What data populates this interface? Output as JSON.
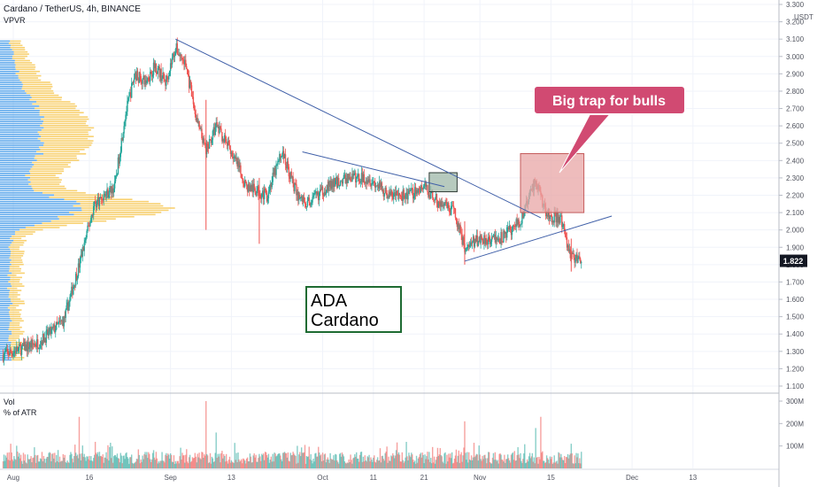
{
  "header": {
    "title": "Cardano / TetherUS, 4h, BINANCE",
    "indicator": "VPVR"
  },
  "volume_pane": {
    "title": "Vol",
    "subtitle": "% of ATR"
  },
  "price_axis": {
    "unit": "USDT",
    "current_price": "1.822"
  },
  "annotations": {
    "callout": "Big trap for bulls",
    "label_line1": "ADA",
    "label_line2": "Cardano"
  },
  "colors": {
    "up": "#26a69a",
    "down": "#ef5350",
    "trendline": "#3f5fa8",
    "vpvr_up": "#2f8fe6",
    "vpvr_down": "#f5c242",
    "trap_box": "#e8a6a6",
    "green_box": "#9fb8a8",
    "callout_fill": "#d14a72",
    "label_border": "#1e6b32"
  },
  "chart_data": [
    {
      "type": "candlestick",
      "title": "Cardano / TetherUS, 4h, BINANCE",
      "ylabel": "USDT",
      "ylim": [
        1.1,
        3.3
      ],
      "yticks": [
        "3.300",
        "3.200",
        "3.100",
        "3.000",
        "2.900",
        "2.800",
        "2.700",
        "2.600",
        "2.500",
        "2.400",
        "2.300",
        "2.200",
        "2.100",
        "2.000",
        "1.900",
        "1.800",
        "1.700",
        "1.600",
        "1.500",
        "1.400",
        "1.300",
        "1.200",
        "1.100"
      ],
      "xticks": [
        "Aug",
        "16",
        "Sep",
        "13",
        "Oct",
        "11",
        "21",
        "Nov",
        "15",
        "Dec",
        "13"
      ],
      "xtick_days": [
        0,
        15,
        31,
        43,
        61,
        71,
        81,
        92,
        106,
        122,
        134
      ],
      "x_unit": "days since Aug 1",
      "last_price": 1.822,
      "price_path": [
        [
          -2,
          1.28
        ],
        [
          5,
          1.35
        ],
        [
          10,
          1.48
        ],
        [
          13,
          1.8
        ],
        [
          16,
          2.15
        ],
        [
          18,
          2.2
        ],
        [
          20,
          2.25
        ],
        [
          22,
          2.65
        ],
        [
          24,
          2.9
        ],
        [
          26,
          2.85
        ],
        [
          28,
          2.95
        ],
        [
          30,
          2.85
        ],
        [
          32,
          3.05
        ],
        [
          34,
          2.95
        ],
        [
          36,
          2.65
        ],
        [
          38,
          2.45
        ],
        [
          40,
          2.6
        ],
        [
          43,
          2.45
        ],
        [
          46,
          2.25
        ],
        [
          50,
          2.2
        ],
        [
          53,
          2.45
        ],
        [
          56,
          2.2
        ],
        [
          58,
          2.15
        ],
        [
          62,
          2.25
        ],
        [
          66,
          2.3
        ],
        [
          70,
          2.3
        ],
        [
          74,
          2.2
        ],
        [
          78,
          2.2
        ],
        [
          81,
          2.25
        ],
        [
          84,
          2.15
        ],
        [
          87,
          2.1
        ],
        [
          89,
          1.9
        ],
        [
          92,
          1.95
        ],
        [
          96,
          1.95
        ],
        [
          100,
          2.05
        ],
        [
          103,
          2.3
        ],
        [
          105,
          2.1
        ],
        [
          108,
          2.05
        ],
        [
          110,
          1.85
        ],
        [
          112,
          1.82
        ]
      ],
      "trendlines": [
        {
          "from": [
            32,
            3.1
          ],
          "to": [
            104,
            2.07
          ]
        },
        {
          "from": [
            57,
            2.45
          ],
          "to": [
            85,
            2.25
          ]
        },
        {
          "from": [
            89,
            1.82
          ],
          "to": [
            118,
            2.08
          ]
        }
      ],
      "boxes": [
        {
          "x": [
            82,
            87.5
          ],
          "y": [
            2.22,
            2.33
          ]
        },
        {
          "x": [
            100,
            112.5
          ],
          "y": [
            2.1,
            2.44
          ]
        }
      ]
    },
    {
      "type": "bar",
      "title": "Vol",
      "ylim": [
        0,
        300000000
      ],
      "yticks": [
        "300M",
        "200M",
        "100M"
      ],
      "spikes": [
        {
          "day": 13,
          "value": 230000000
        },
        {
          "day": 38,
          "value": 300000000
        },
        {
          "day": 40,
          "value": 160000000
        },
        {
          "day": 89,
          "value": 210000000
        },
        {
          "day": 103,
          "value": 180000000
        },
        {
          "day": 104,
          "value": 230000000
        },
        {
          "day": 110,
          "value": 110000000
        }
      ]
    }
  ]
}
